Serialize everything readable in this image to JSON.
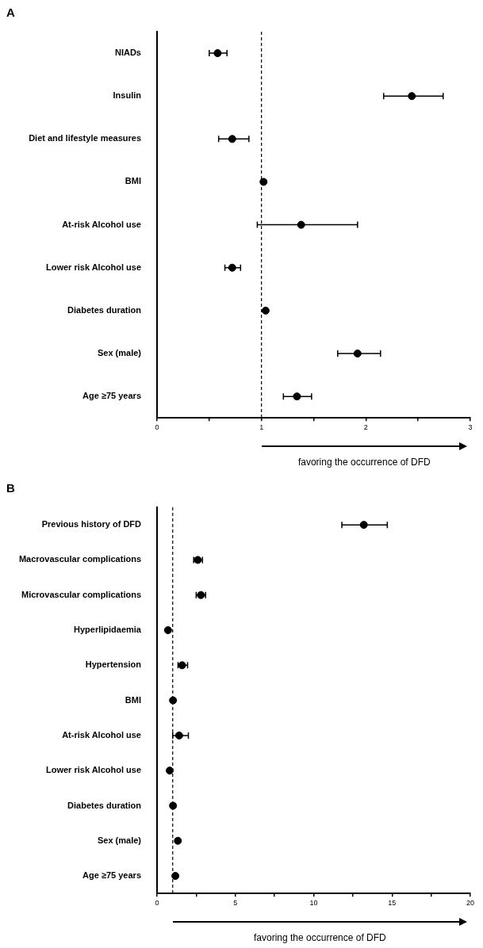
{
  "chart_data": [
    {
      "type": "scatter",
      "title": "A",
      "orientation": "horizontal",
      "xlabel": "favoring the occurrence of DFD",
      "categories": [
        "NIADs",
        "Insulin",
        "Diet and lifestyle measures",
        "BMI",
        "At-risk Alcohol use",
        "Lower risk Alcohol use",
        "Diabetes duration",
        "Sex (male)",
        "Age ≥75 years"
      ],
      "values": [
        0.58,
        2.44,
        0.72,
        1.02,
        1.38,
        0.72,
        1.04,
        1.92,
        1.34
      ],
      "errors": [
        [
          0.5,
          0.67
        ],
        [
          2.17,
          2.74
        ],
        [
          0.59,
          0.88
        ],
        null,
        [
          0.96,
          1.92
        ],
        [
          0.65,
          0.8
        ],
        null,
        [
          1.73,
          2.14
        ],
        [
          1.21,
          1.48
        ]
      ],
      "color": "#000000",
      "marker": "circle",
      "grid": false,
      "legend": false,
      "xlim": [
        0,
        3
      ],
      "xticks": [
        0,
        {
          "value": 0.5,
          "label": null
        },
        1,
        {
          "value": 1.5,
          "label": null
        },
        2,
        {
          "value": 2.5,
          "label": null
        },
        3
      ],
      "ref_lines": [
        {
          "axis": "x",
          "value": 1,
          "line_style": "dashed",
          "color": "#000000"
        }
      ]
    },
    {
      "type": "scatter",
      "title": "B",
      "orientation": "horizontal",
      "xlabel": "favoring the occurrence of DFD",
      "categories": [
        "Previous history of DFD",
        "Macrovascular complications",
        "Microvascular complications",
        "Hyperlipidaemia",
        "Hypertension",
        "BMI",
        "At-risk Alcohol use",
        "Lower risk Alcohol use",
        "Diabetes duration",
        "Sex (male)",
        "Age ≥75 years"
      ],
      "values": [
        13.2,
        2.6,
        2.8,
        0.7,
        1.6,
        1.02,
        1.41,
        0.81,
        1.02,
        1.33,
        1.17
      ],
      "errors": [
        [
          11.8,
          14.7
        ],
        [
          2.34,
          2.9
        ],
        [
          2.5,
          3.1
        ],
        null,
        [
          1.34,
          1.95
        ],
        null,
        [
          1.0,
          2.0
        ],
        null,
        null,
        null,
        null
      ],
      "color": "#000000",
      "marker": "circle",
      "grid": false,
      "legend": false,
      "xlim": [
        0,
        20
      ],
      "xticks": [
        0,
        {
          "value": 2.5,
          "label": null
        },
        5,
        {
          "value": 7.5,
          "label": null
        },
        10,
        {
          "value": 12.5,
          "label": null
        },
        15,
        {
          "value": 17.5,
          "label": null
        },
        20
      ],
      "ref_lines": [
        {
          "axis": "x",
          "value": 1,
          "line_style": "dashed",
          "color": "#000000"
        }
      ]
    }
  ]
}
